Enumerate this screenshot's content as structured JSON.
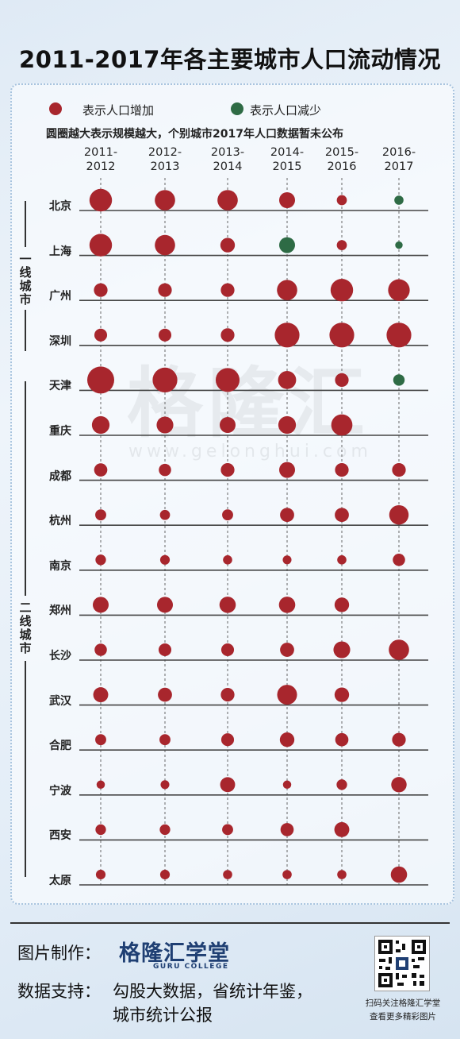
{
  "title": "2011-2017年各主要城市人口流动情况",
  "legend": {
    "increase_label": "表示人口增加",
    "decrease_label": "表示人口减少",
    "increase_color": "#a8262d",
    "decrease_color": "#2e6b45",
    "note": "圆圈越大表示规模越大，个别城市2017年人口数据暂未公布"
  },
  "tiers": {
    "tier1": "一线城市",
    "tier2": "二线城市"
  },
  "watermark": {
    "name": "格隆汇",
    "url": "www.gelonghui.com"
  },
  "footer": {
    "maker_label": "图片制作：",
    "brand": "格隆汇学堂",
    "brand_sub": "GURU COLLEGE",
    "source_label": "数据支持：",
    "source_line1": "勾股大数据，省统计年鉴，",
    "source_line2": "城市统计公报",
    "qr_caption1": "扫码关注格隆汇学堂",
    "qr_caption2": "查看更多精彩图片"
  },
  "chart_data": {
    "type": "scatter",
    "periods": [
      [
        "2011-",
        "2012"
      ],
      [
        "2012-",
        "2013"
      ],
      [
        "2013-",
        "2014"
      ],
      [
        "2014-",
        "2015"
      ],
      [
        "2015-",
        "2016"
      ],
      [
        "2016-",
        "2017"
      ]
    ],
    "size_scale": "relative magnitude 1-5",
    "cities": [
      {
        "name": "北京",
        "tier": 1,
        "values": [
          4,
          3.5,
          3.5,
          2.5,
          1.2,
          -1
        ]
      },
      {
        "name": "上海",
        "tier": 1,
        "values": [
          4,
          3.5,
          2.2,
          -2.5,
          1.2,
          -0.6
        ]
      },
      {
        "name": "广州",
        "tier": 1,
        "values": [
          2,
          2,
          2,
          3.5,
          4,
          3.8
        ]
      },
      {
        "name": "深圳",
        "tier": 1,
        "values": [
          1.8,
          1.8,
          2,
          4.5,
          4.5,
          4.5
        ]
      },
      {
        "name": "天津",
        "tier": 2,
        "values": [
          5,
          4.5,
          4.3,
          3,
          2,
          -1.5
        ]
      },
      {
        "name": "重庆",
        "tier": 2,
        "values": [
          2.9,
          2.7,
          2.5,
          2.9,
          3.7,
          null
        ]
      },
      {
        "name": "成都",
        "tier": 2,
        "values": [
          1.9,
          1.7,
          2,
          2.5,
          2,
          2
        ]
      },
      {
        "name": "杭州",
        "tier": 2,
        "values": [
          1.4,
          1.2,
          1.4,
          2.1,
          2.1,
          3.3
        ]
      },
      {
        "name": "南京",
        "tier": 2,
        "values": [
          1.3,
          1.1,
          1,
          0.9,
          1,
          1.7
        ]
      },
      {
        "name": "郑州",
        "tier": 2,
        "values": [
          2.5,
          2.5,
          2.6,
          2.6,
          2.2,
          null
        ]
      },
      {
        "name": "长沙",
        "tier": 2,
        "values": [
          1.7,
          1.8,
          1.8,
          2.1,
          2.7,
          3.5
        ]
      },
      {
        "name": "武汉",
        "tier": 2,
        "values": [
          2.3,
          2.1,
          2,
          3.4,
          2.2,
          null
        ]
      },
      {
        "name": "合肥",
        "tier": 2,
        "values": [
          1.4,
          1.4,
          1.8,
          2.2,
          1.9,
          2
        ]
      },
      {
        "name": "宁波",
        "tier": 2,
        "values": [
          0.8,
          0.9,
          2.3,
          0.8,
          1.3,
          2.4
        ]
      },
      {
        "name": "西安",
        "tier": 2,
        "values": [
          1.3,
          1.3,
          1.4,
          1.9,
          2.3,
          null
        ]
      },
      {
        "name": "太原",
        "tier": 2,
        "values": [
          1.1,
          1.1,
          1,
          1,
          1,
          2.6
        ]
      }
    ]
  }
}
